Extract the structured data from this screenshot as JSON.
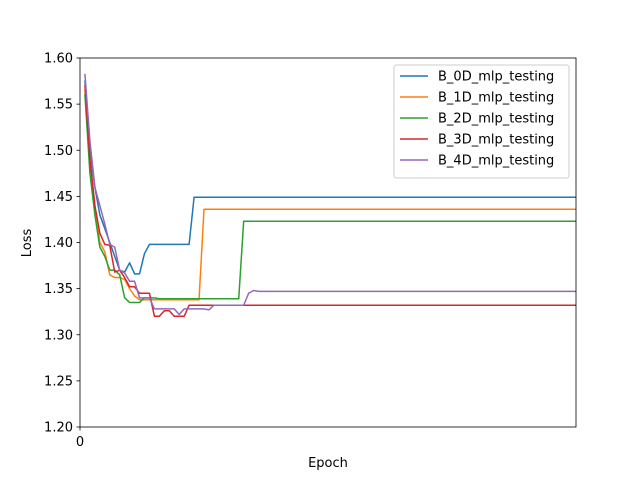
{
  "chart_data": {
    "type": "line",
    "title": "",
    "xlabel": "Epoch",
    "ylabel": "Loss",
    "xlim": [
      0,
      100
    ],
    "ylim": [
      1.2,
      1.6
    ],
    "x_ticks": [
      "0"
    ],
    "y_ticks": [
      "1.20",
      "1.25",
      "1.30",
      "1.35",
      "1.40",
      "1.45",
      "1.50",
      "1.55",
      "1.60"
    ],
    "grid": false,
    "legend_position": "top-right",
    "x": [
      1,
      2,
      3,
      4,
      5,
      6,
      7,
      8,
      9,
      10,
      11,
      12,
      13,
      14,
      15,
      16,
      17,
      18,
      19,
      20,
      21,
      22,
      23,
      24,
      25,
      26,
      27,
      28,
      29,
      30,
      31,
      32,
      33,
      34,
      35,
      36,
      37,
      38,
      39,
      40,
      41,
      42,
      43,
      44,
      45,
      46,
      47,
      48,
      49,
      50,
      51,
      52,
      53,
      54,
      55,
      56,
      57,
      58,
      59,
      60,
      61,
      62,
      63,
      64,
      65,
      66,
      67,
      68,
      69,
      70,
      71,
      72,
      73,
      74,
      75,
      76,
      77,
      78,
      79,
      80,
      81,
      82,
      83,
      84,
      85,
      86,
      87,
      88,
      89,
      90,
      91,
      92,
      93,
      94,
      95,
      96,
      97,
      98,
      99,
      100
    ],
    "series": [
      {
        "name": "B_0D_mlp_testing",
        "color": "#1f77b4",
        "values": [
          1.575,
          1.5,
          1.46,
          1.43,
          1.415,
          1.4,
          1.385,
          1.37,
          1.368,
          1.378,
          1.366,
          1.366,
          1.388,
          1.398,
          1.398,
          1.398,
          1.398,
          1.398,
          1.398,
          1.398,
          1.398,
          1.398,
          1.449,
          1.449,
          1.449,
          1.449,
          1.449,
          1.449,
          1.449,
          1.449,
          1.449,
          1.449,
          1.449,
          1.449,
          1.449,
          1.449,
          1.449,
          1.449,
          1.449,
          1.449,
          1.449,
          1.449,
          1.449,
          1.449,
          1.449,
          1.449,
          1.449,
          1.449,
          1.449,
          1.449,
          1.449,
          1.449,
          1.449,
          1.449,
          1.449,
          1.449,
          1.449,
          1.449,
          1.449,
          1.449,
          1.449,
          1.449,
          1.449,
          1.449,
          1.449,
          1.449,
          1.449,
          1.449,
          1.449,
          1.449,
          1.449,
          1.449,
          1.449,
          1.449,
          1.449,
          1.449,
          1.449,
          1.449,
          1.449,
          1.449,
          1.449,
          1.449,
          1.449,
          1.449,
          1.449,
          1.449,
          1.449,
          1.449,
          1.449,
          1.449,
          1.449,
          1.449,
          1.449,
          1.449,
          1.449,
          1.449,
          1.449,
          1.449,
          1.449,
          1.449
        ]
      },
      {
        "name": "B_1D_mlp_testing",
        "color": "#ff7f0e",
        "values": [
          1.565,
          1.49,
          1.44,
          1.4,
          1.39,
          1.365,
          1.362,
          1.362,
          1.36,
          1.35,
          1.342,
          1.338,
          1.338,
          1.338,
          1.338,
          1.338,
          1.338,
          1.338,
          1.338,
          1.338,
          1.338,
          1.338,
          1.338,
          1.338,
          1.436,
          1.436,
          1.436,
          1.436,
          1.436,
          1.436,
          1.436,
          1.436,
          1.436,
          1.436,
          1.436,
          1.436,
          1.436,
          1.436,
          1.436,
          1.436,
          1.436,
          1.436,
          1.436,
          1.436,
          1.436,
          1.436,
          1.436,
          1.436,
          1.436,
          1.436,
          1.436,
          1.436,
          1.436,
          1.436,
          1.436,
          1.436,
          1.436,
          1.436,
          1.436,
          1.436,
          1.436,
          1.436,
          1.436,
          1.436,
          1.436,
          1.436,
          1.436,
          1.436,
          1.436,
          1.436,
          1.436,
          1.436,
          1.436,
          1.436,
          1.436,
          1.436,
          1.436,
          1.436,
          1.436,
          1.436,
          1.436,
          1.436,
          1.436,
          1.436,
          1.436,
          1.436,
          1.436,
          1.436,
          1.436,
          1.436,
          1.436,
          1.436,
          1.436,
          1.436,
          1.436,
          1.436,
          1.436,
          1.436,
          1.436,
          1.436
        ]
      },
      {
        "name": "B_2D_mlp_testing",
        "color": "#2ca02c",
        "values": [
          1.56,
          1.475,
          1.43,
          1.395,
          1.385,
          1.37,
          1.37,
          1.365,
          1.34,
          1.335,
          1.335,
          1.335,
          1.34,
          1.34,
          1.34,
          1.339,
          1.339,
          1.339,
          1.339,
          1.339,
          1.339,
          1.339,
          1.339,
          1.339,
          1.339,
          1.339,
          1.339,
          1.339,
          1.339,
          1.339,
          1.339,
          1.339,
          1.423,
          1.423,
          1.423,
          1.423,
          1.423,
          1.423,
          1.423,
          1.423,
          1.423,
          1.423,
          1.423,
          1.423,
          1.423,
          1.423,
          1.423,
          1.423,
          1.423,
          1.423,
          1.423,
          1.423,
          1.423,
          1.423,
          1.423,
          1.423,
          1.423,
          1.423,
          1.423,
          1.423,
          1.423,
          1.423,
          1.423,
          1.423,
          1.423,
          1.423,
          1.423,
          1.423,
          1.423,
          1.423,
          1.423,
          1.423,
          1.423,
          1.423,
          1.423,
          1.423,
          1.423,
          1.423,
          1.423,
          1.423,
          1.423,
          1.423,
          1.423,
          1.423,
          1.423,
          1.423,
          1.423,
          1.423,
          1.423,
          1.423,
          1.423,
          1.423,
          1.423,
          1.423,
          1.423,
          1.423,
          1.423,
          1.423,
          1.423,
          1.423
        ]
      },
      {
        "name": "B_3D_mlp_testing",
        "color": "#d62728",
        "values": [
          1.57,
          1.49,
          1.44,
          1.41,
          1.398,
          1.397,
          1.368,
          1.37,
          1.362,
          1.352,
          1.352,
          1.345,
          1.345,
          1.345,
          1.32,
          1.32,
          1.326,
          1.326,
          1.32,
          1.32,
          1.32,
          1.332,
          1.332,
          1.332,
          1.332,
          1.332,
          1.332,
          1.332,
          1.332,
          1.332,
          1.332,
          1.332,
          1.332,
          1.332,
          1.332,
          1.332,
          1.332,
          1.332,
          1.332,
          1.332,
          1.332,
          1.332,
          1.332,
          1.332,
          1.332,
          1.332,
          1.332,
          1.332,
          1.332,
          1.332,
          1.332,
          1.332,
          1.332,
          1.332,
          1.332,
          1.332,
          1.332,
          1.332,
          1.332,
          1.332,
          1.332,
          1.332,
          1.332,
          1.332,
          1.332,
          1.332,
          1.332,
          1.332,
          1.332,
          1.332,
          1.332,
          1.332,
          1.332,
          1.332,
          1.332,
          1.332,
          1.332,
          1.332,
          1.332,
          1.332,
          1.332,
          1.332,
          1.332,
          1.332,
          1.332,
          1.332,
          1.332,
          1.332,
          1.332,
          1.332,
          1.332,
          1.332,
          1.332,
          1.332,
          1.332,
          1.332,
          1.332,
          1.332,
          1.332,
          1.332
        ]
      },
      {
        "name": "B_4D_mlp_testing",
        "color": "#9467bd",
        "values": [
          1.582,
          1.51,
          1.46,
          1.44,
          1.42,
          1.398,
          1.395,
          1.37,
          1.367,
          1.358,
          1.358,
          1.34,
          1.34,
          1.34,
          1.328,
          1.328,
          1.328,
          1.328,
          1.328,
          1.322,
          1.328,
          1.328,
          1.328,
          1.328,
          1.328,
          1.327,
          1.332,
          1.332,
          1.332,
          1.332,
          1.332,
          1.332,
          1.332,
          1.345,
          1.348,
          1.347,
          1.347,
          1.347,
          1.347,
          1.347,
          1.347,
          1.347,
          1.347,
          1.347,
          1.347,
          1.347,
          1.347,
          1.347,
          1.347,
          1.347,
          1.347,
          1.347,
          1.347,
          1.347,
          1.347,
          1.347,
          1.347,
          1.347,
          1.347,
          1.347,
          1.347,
          1.347,
          1.347,
          1.347,
          1.347,
          1.347,
          1.347,
          1.347,
          1.347,
          1.347,
          1.347,
          1.347,
          1.347,
          1.347,
          1.347,
          1.347,
          1.347,
          1.347,
          1.347,
          1.347,
          1.347,
          1.347,
          1.347,
          1.347,
          1.347,
          1.347,
          1.347,
          1.347,
          1.347,
          1.347,
          1.347,
          1.347,
          1.347,
          1.347,
          1.347,
          1.347,
          1.347,
          1.347,
          1.347,
          1.347
        ]
      }
    ]
  }
}
